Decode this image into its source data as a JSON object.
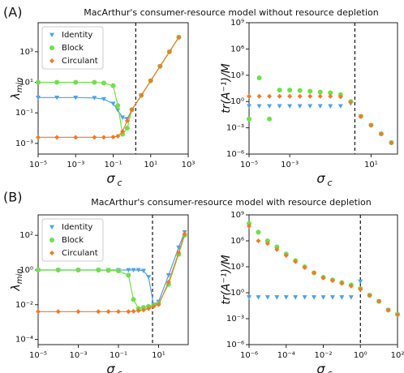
{
  "panels": [
    {
      "label": "(A)",
      "title": "MacArthur's consumer-resource model without resource depletion"
    },
    {
      "label": "(B)",
      "title": "MacArthur's consumer-resource model with resource depletion"
    }
  ],
  "chart_data": [
    {
      "type": "line",
      "log_x": true,
      "log_y": true,
      "legend": "upper left",
      "xlabel": "σ",
      "xlabel_sub": "c",
      "ylabel": "λ",
      "ylabel_sub": "min",
      "xlim": [
        1e-05,
        1000
      ],
      "ylim": [
        0.0002,
        80000
      ],
      "xticks": [
        {
          "value": 1e-05,
          "label": "10⁻⁵"
        },
        {
          "value": 0.001,
          "label": "10⁻³"
        },
        {
          "value": 0.1,
          "label": "10⁻¹"
        },
        {
          "value": 10,
          "label": "10¹"
        },
        {
          "value": 1000,
          "label": "10³"
        }
      ],
      "yticks": [
        {
          "value": 0.001,
          "label": "10⁻³"
        },
        {
          "value": 0.1,
          "label": "10⁻¹"
        },
        {
          "value": 10,
          "label": "10¹"
        },
        {
          "value": 1000,
          "label": "10³"
        }
      ],
      "vline": 1.6,
      "x": [
        1e-05,
        0.0001,
        0.001,
        0.01,
        0.0316,
        0.1,
        0.178,
        0.316,
        0.562,
        1,
        3.16,
        10,
        31.6,
        100,
        316
      ],
      "series": [
        {
          "name": "Identity",
          "color": "#4f9fe8",
          "marker": "v",
          "values": [
            1,
            1,
            1,
            0.95,
            0.8,
            0.4,
            0.15,
            0.05,
            0.04,
            0.16,
            1.4,
            12.6,
            112,
            1000,
            8900
          ]
        },
        {
          "name": "Block",
          "color": "#6ee04a",
          "marker": "o",
          "values": [
            10,
            10,
            10,
            10,
            9,
            6,
            0.3,
            0.004,
            0.01,
            0.16,
            1.4,
            12.6,
            112,
            1000,
            8900
          ]
        },
        {
          "name": "Circulant",
          "color": "#f07a2a",
          "marker": "D",
          "values": [
            0.0025,
            0.0025,
            0.0025,
            0.0025,
            0.0025,
            0.0026,
            0.003,
            0.006,
            0.03,
            0.16,
            1.4,
            12.6,
            112,
            1000,
            8900
          ]
        }
      ]
    },
    {
      "type": "scatter",
      "log_x": true,
      "log_y": true,
      "xlabel": "σ",
      "xlabel_sub": "c",
      "ylabel": "tr(A⁻¹)/M",
      "xlim": [
        1e-05,
        200
      ],
      "ylim": [
        1e-06,
        1000000000
      ],
      "xticks": [
        {
          "value": 1e-05,
          "label": "10⁻⁵"
        },
        {
          "value": 0.001,
          "label": "10⁻³"
        },
        {
          "value": 10,
          "label": "10¹"
        }
      ],
      "yticks": [
        {
          "value": 1e-06,
          "label": "10⁻⁶"
        },
        {
          "value": 0.001,
          "label": "10⁻³"
        },
        {
          "value": 1,
          "label": "10⁰"
        },
        {
          "value": 1000,
          "label": "10³"
        },
        {
          "value": 1000000,
          "label": "10⁶"
        },
        {
          "value": 1000000000,
          "label": "10⁹"
        }
      ],
      "vline": 1.6,
      "x": [
        1e-05,
        3.16e-05,
        0.0001,
        0.000316,
        0.001,
        0.00316,
        0.01,
        0.0316,
        0.1,
        0.316,
        1,
        3.16,
        10,
        31.6,
        100
      ],
      "series": [
        {
          "name": "Identity",
          "color": "#4f9fe8",
          "marker": "v",
          "values": [
            0.3,
            0.3,
            0.3,
            0.3,
            0.3,
            0.3,
            0.3,
            0.3,
            0.3,
            0.3,
            0.6,
            0.02,
            0.002,
            0.0002,
            2e-05
          ]
        },
        {
          "name": "Block",
          "color": "#6ee04a",
          "marker": "o",
          "values": [
            0.01,
            500,
            0.01,
            20,
            20,
            18,
            15,
            12,
            10,
            6,
            1,
            0.02,
            0.002,
            0.0002,
            2e-05
          ]
        },
        {
          "name": "Circulant",
          "color": "#f07a2a",
          "marker": "D",
          "values": [
            4,
            4,
            4,
            4,
            4,
            4,
            4,
            4,
            4,
            3.5,
            0.8,
            0.02,
            0.002,
            0.0002,
            2e-05
          ]
        }
      ]
    },
    {
      "type": "line",
      "log_x": true,
      "log_y": true,
      "legend": "upper left",
      "xlabel": "σ",
      "xlabel_sub": "c",
      "ylabel": "λ",
      "ylabel_sub": "min",
      "xlim": [
        1e-05,
        300
      ],
      "ylim": [
        5e-05,
        1500
      ],
      "xticks": [
        {
          "value": 1e-05,
          "label": "10⁻⁵"
        },
        {
          "value": 0.001,
          "label": "10⁻³"
        },
        {
          "value": 0.1,
          "label": "10⁻¹"
        },
        {
          "value": 10,
          "label": "10¹"
        }
      ],
      "yticks": [
        {
          "value": 0.0001,
          "label": "10⁻⁴"
        },
        {
          "value": 0.01,
          "label": "10⁻²"
        },
        {
          "value": 1,
          "label": "10⁰"
        },
        {
          "value": 100,
          "label": "10²"
        }
      ],
      "vline": 5,
      "x": [
        1e-05,
        0.0001,
        0.001,
        0.01,
        0.0316,
        0.1,
        0.316,
        0.562,
        1,
        1.78,
        3.16,
        5.62,
        10,
        31.6,
        100,
        200
      ],
      "series": [
        {
          "name": "Identity",
          "color": "#4f9fe8",
          "marker": "v",
          "values": [
            1,
            1,
            1,
            1,
            1,
            1,
            1,
            1,
            1,
            0.9,
            0.4,
            0.01,
            0.015,
            0.5,
            20,
            150
          ]
        },
        {
          "name": "Block",
          "color": "#6ee04a",
          "marker": "o",
          "values": [
            1,
            1,
            1,
            1,
            0.95,
            0.9,
            0.5,
            0.02,
            0.006,
            0.007,
            0.008,
            0.009,
            0.012,
            0.15,
            8,
            100
          ]
        },
        {
          "name": "Circulant",
          "color": "#f07a2a",
          "marker": "D",
          "values": [
            0.004,
            0.004,
            0.004,
            0.004,
            0.004,
            0.004,
            0.004,
            0.0042,
            0.0045,
            0.005,
            0.006,
            0.008,
            0.01,
            0.2,
            10,
            120
          ]
        }
      ]
    },
    {
      "type": "scatter",
      "log_x": true,
      "log_y": true,
      "xlabel": "σ",
      "xlabel_sub": "c",
      "ylabel": "tr(A⁻¹)/M",
      "xlim": [
        1e-06,
        100
      ],
      "ylim": [
        1e-06,
        1000000000
      ],
      "xticks": [
        {
          "value": 1e-06,
          "label": "10⁻⁶"
        },
        {
          "value": 0.0001,
          "label": "10⁻⁴"
        },
        {
          "value": 0.01,
          "label": "10⁻²"
        },
        {
          "value": 1,
          "label": "10⁰"
        },
        {
          "value": 100,
          "label": "10²"
        }
      ],
      "yticks": [
        {
          "value": 1e-06,
          "label": "10⁻⁶"
        },
        {
          "value": 0.001,
          "label": "10⁻³"
        },
        {
          "value": 1,
          "label": "10⁰"
        },
        {
          "value": 1000,
          "label": "10³"
        },
        {
          "value": 1000000,
          "label": "10⁶"
        },
        {
          "value": 1000000000,
          "label": "10⁹"
        }
      ],
      "vline": 1,
      "x": [
        1e-06,
        3.16e-06,
        1e-05,
        3.16e-05,
        0.0001,
        0.000316,
        0.001,
        0.00316,
        0.01,
        0.0316,
        0.1,
        0.316,
        1,
        3.16,
        10,
        31.6,
        100
      ],
      "series": [
        {
          "name": "Identity",
          "color": "#4f9fe8",
          "marker": "v",
          "values": [
            0.3,
            0.3,
            0.3,
            0.3,
            0.3,
            0.3,
            0.3,
            0.3,
            0.3,
            0.3,
            0.3,
            0.3,
            20,
            0.5,
            0.1,
            0.01,
            0.003
          ]
        },
        {
          "name": "Block",
          "color": "#6ee04a",
          "marker": "o",
          "values": [
            100000000,
            10000000,
            1000000,
            200000,
            30000,
            5000,
            1000,
            200,
            60,
            30,
            15,
            8,
            3,
            0.5,
            0.1,
            0.01,
            0.003
          ]
        },
        {
          "name": "Circulant",
          "color": "#f07a2a",
          "marker": "D",
          "values": [
            50000000,
            1000000,
            500000,
            100000,
            20000,
            4000,
            800,
            200,
            50,
            25,
            12,
            6,
            2.5,
            0.5,
            0.1,
            0.01,
            0.003
          ]
        }
      ]
    }
  ]
}
